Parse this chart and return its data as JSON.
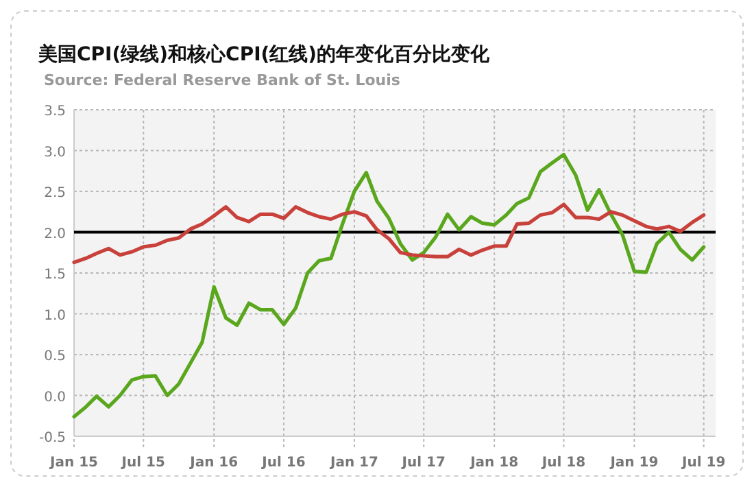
{
  "chart_data": {
    "type": "line",
    "title": "美国CPI(绿线)和核心CPI(红线)的年变化百分比变化",
    "subtitle": "Source: Federal Reserve Bank of St. Louis",
    "x": [
      "2015-01",
      "2015-02",
      "2015-03",
      "2015-04",
      "2015-05",
      "2015-06",
      "2015-07",
      "2015-08",
      "2015-09",
      "2015-10",
      "2015-11",
      "2015-12",
      "2016-01",
      "2016-02",
      "2016-03",
      "2016-04",
      "2016-05",
      "2016-06",
      "2016-07",
      "2016-08",
      "2016-09",
      "2016-10",
      "2016-11",
      "2016-12",
      "2017-01",
      "2017-02",
      "2017-03",
      "2017-04",
      "2017-05",
      "2017-06",
      "2017-07",
      "2017-08",
      "2017-09",
      "2017-10",
      "2017-11",
      "2017-12",
      "2018-01",
      "2018-02",
      "2018-03",
      "2018-04",
      "2018-05",
      "2018-06",
      "2018-07",
      "2018-08",
      "2018-09",
      "2018-10",
      "2018-11",
      "2018-12",
      "2019-01",
      "2019-02",
      "2019-03",
      "2019-04",
      "2019-05",
      "2019-06",
      "2019-07"
    ],
    "series": [
      {
        "color": "#5aa71e",
        "values": [
          -0.26,
          -0.14,
          -0.01,
          -0.14,
          0.0,
          0.19,
          0.23,
          0.24,
          0.0,
          0.14,
          0.4,
          0.65,
          1.33,
          0.95,
          0.86,
          1.13,
          1.05,
          1.05,
          0.87,
          1.07,
          1.5,
          1.65,
          1.68,
          2.1,
          2.5,
          2.73,
          2.38,
          2.17,
          1.86,
          1.66,
          1.75,
          1.94,
          2.22,
          2.03,
          2.19,
          2.11,
          2.09,
          2.21,
          2.35,
          2.42,
          2.74,
          2.85,
          2.95,
          2.7,
          2.27,
          2.52,
          2.22,
          1.97,
          1.52,
          1.51,
          1.86,
          2.0,
          1.79,
          1.66,
          1.82
        ]
      },
      {
        "color": "#c8413b",
        "values": [
          1.63,
          1.68,
          1.74,
          1.8,
          1.72,
          1.76,
          1.82,
          1.84,
          1.9,
          1.93,
          2.04,
          2.1,
          2.2,
          2.31,
          2.18,
          2.13,
          2.22,
          2.22,
          2.17,
          2.31,
          2.24,
          2.19,
          2.16,
          2.22,
          2.25,
          2.2,
          2.03,
          1.92,
          1.75,
          1.72,
          1.71,
          1.7,
          1.7,
          1.79,
          1.72,
          1.78,
          1.83,
          1.83,
          2.1,
          2.11,
          2.21,
          2.24,
          2.34,
          2.18,
          2.18,
          2.16,
          2.25,
          2.21,
          2.14,
          2.07,
          2.04,
          2.07,
          2.01,
          2.12,
          2.21
        ]
      }
    ],
    "xlim": [
      "2015-01",
      "2019-08"
    ],
    "xticks": [
      {
        "value": "2015-01",
        "label": "Jan 15"
      },
      {
        "value": "2015-07",
        "label": "Jul 15"
      },
      {
        "value": "2016-01",
        "label": "Jan 16"
      },
      {
        "value": "2016-07",
        "label": "Jul 16"
      },
      {
        "value": "2017-01",
        "label": "Jan 17"
      },
      {
        "value": "2017-07",
        "label": "Jul 17"
      },
      {
        "value": "2018-01",
        "label": "Jan 18"
      },
      {
        "value": "2018-07",
        "label": "Jul 18"
      },
      {
        "value": "2019-01",
        "label": "Jan 19"
      },
      {
        "value": "2019-07",
        "label": "Jul 19"
      }
    ],
    "ylim": [
      -0.5,
      3.5
    ],
    "yticks": [
      {
        "value": -0.5,
        "label": "-0.5"
      },
      {
        "value": 0,
        "label": "0.0"
      },
      {
        "value": 0.5,
        "label": "0.5"
      },
      {
        "value": 1,
        "label": "1.0"
      },
      {
        "value": 1.5,
        "label": "1.5"
      },
      {
        "value": 2,
        "label": "2.0"
      },
      {
        "value": 2.5,
        "label": "2.5"
      },
      {
        "value": 3,
        "label": "3.0"
      },
      {
        "value": 3.5,
        "label": "3.5"
      }
    ],
    "grid": true,
    "line_style": "solid",
    "marker": "none",
    "ref_lines": [
      {
        "axis": "y",
        "value": 2,
        "color": "#000000"
      }
    ]
  }
}
